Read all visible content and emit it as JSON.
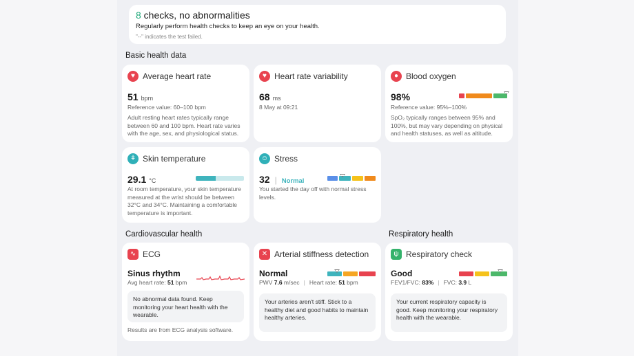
{
  "summary": {
    "count": "8",
    "title_rest": " checks, no abnormalities",
    "subtitle": "Regularly perform health checks to keep an eye on your health.",
    "note": "\"--\" indicates the test failed."
  },
  "sections": {
    "basic": "Basic health data",
    "cardio": "Cardiovascular health",
    "resp": "Respiratory health"
  },
  "cards": {
    "heart_rate": {
      "name": "Average heart rate",
      "value": "51",
      "unit": "bpm",
      "ref": "Reference value: 60–100 bpm",
      "desc": "Adult resting heart rates typically range between 60 and 100 bpm. Heart rate varies with the age, sex, and physiological status.",
      "icon": "heart-icon",
      "color": "#e8434f"
    },
    "hrv": {
      "name": "Heart rate variability",
      "value": "68",
      "unit": "ms",
      "meta": "8 May at 09:21",
      "icon": "heart-pulse-icon",
      "color": "#e8434f"
    },
    "blood_oxygen": {
      "name": "Blood oxygen",
      "value": "98%",
      "ref": "Reference value: 95%–100%",
      "desc": "SpO₂ typically ranges between 95% and 100%, but may vary depending on physical and health statuses, as well as altitude.",
      "icon": "blood-drop-icon",
      "color": "#e8434f",
      "level_fraction": 0.98
    },
    "skin_temp": {
      "name": "Skin temperature",
      "value": "29.1",
      "unit": "°C",
      "desc": "At room temperature, your skin temperature measured at the wrist should be between 32°C and 34°C. Maintaining a comfortable temperature is important.",
      "icon": "thermometer-icon",
      "color": "#2fb0b8",
      "level_fraction": 0.42
    },
    "stress": {
      "name": "Stress",
      "value": "32",
      "status": "Normal",
      "desc": "You started the day off with normal stress levels.",
      "icon": "person-icon",
      "color": "#2fb0b8",
      "level_fraction": 0.32
    },
    "ecg": {
      "name": "ECG",
      "status": "Sinus rhythm",
      "avg_label": "Avg heart rate: ",
      "avg_value": "51",
      "avg_unit": " bpm",
      "box": "No abnormal data found. Keep monitoring your heart health with the wearable.",
      "footer": "Results are from ECG analysis software.",
      "icon": "ecg-icon",
      "color": "#e8434f"
    },
    "arterial": {
      "name": "Arterial stiffness detection",
      "status": "Normal",
      "pwv_label": "PWV ",
      "pwv_value": "7.6",
      "pwv_unit": " m/sec",
      "hr_label": "Heart rate: ",
      "hr_value": "51",
      "hr_unit": " bpm",
      "box": "Your arteries aren't stiff. Stick to a healthy diet and good habits to maintain healthy arteries.",
      "icon": "artery-icon",
      "color": "#e8434f",
      "level_fraction": 0.2
    },
    "respiratory": {
      "name": "Respiratory check",
      "status": "Good",
      "fev_label": "FEV1/FVC: ",
      "fev_value": "83%",
      "fvc_label": "FVC: ",
      "fvc_value": "3.9",
      "fvc_unit": " L",
      "box": "Your current respiratory capacity is good. Keep monitoring your respiratory health with the wearable.",
      "icon": "lungs-icon",
      "color": "#34b26b",
      "level_fraction": 0.85
    }
  },
  "colors": {
    "red": "#e8434f",
    "orange": "#f08a1c",
    "yellow": "#f5c21b",
    "green": "#4cb86a",
    "teal": "#3fb4bd",
    "blue": "#5a8fe8"
  }
}
